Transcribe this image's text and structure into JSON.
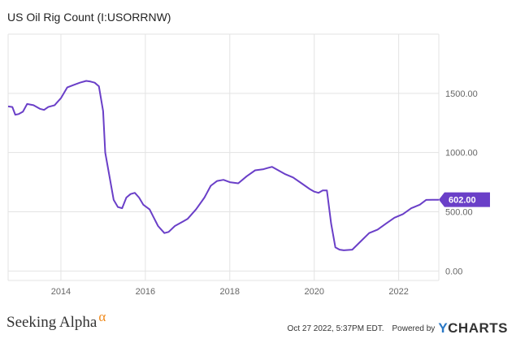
{
  "title": "US Oil Rig Count (I:USORRNW)",
  "footer": {
    "brand": "Seeking Alpha",
    "brand_mark": "α",
    "timestamp": "Oct 27 2022, 5:37PM EDT.",
    "powered_by": "Powered by",
    "logo_y": "Y",
    "logo_rest": "CHARTS"
  },
  "colors": {
    "line": "#6a3fc8",
    "grid": "#e3e3e3",
    "badge": "#6a3fc8"
  },
  "chart_data": {
    "type": "line",
    "title": "US Oil Rig Count (I:USORRNW)",
    "xlim": [
      2012.75,
      2022.95
    ],
    "ylim": [
      -80,
      2000
    ],
    "grid": true,
    "x_ticks": [
      {
        "value": 2014,
        "label": "2014"
      },
      {
        "value": 2016,
        "label": "2016"
      },
      {
        "value": 2018,
        "label": "2018"
      },
      {
        "value": 2020,
        "label": "2020"
      },
      {
        "value": 2022,
        "label": "2022"
      }
    ],
    "y_ticks": [
      {
        "value": 0,
        "label": "0.00"
      },
      {
        "value": 500,
        "label": "500.00"
      },
      {
        "value": 1000,
        "label": "1000.00"
      },
      {
        "value": 1500,
        "label": "1500.00"
      }
    ],
    "last_value": {
      "value": 602,
      "label": "602.00"
    },
    "series": [
      {
        "x": [
          2012.75,
          2012.85,
          2012.92,
          2013.0,
          2013.1,
          2013.2,
          2013.35,
          2013.5,
          2013.6,
          2013.7,
          2013.85,
          2014.0,
          2014.15,
          2014.3,
          2014.45,
          2014.6,
          2014.7,
          2014.8,
          2014.9,
          2015.0,
          2015.05,
          2015.15,
          2015.25,
          2015.35,
          2015.45,
          2015.55,
          2015.65,
          2015.75,
          2015.85,
          2015.95,
          2016.1,
          2016.2,
          2016.3,
          2016.4,
          2016.45,
          2016.55,
          2016.7,
          2016.9,
          2017.0,
          2017.2,
          2017.4,
          2017.55,
          2017.7,
          2017.85,
          2018.0,
          2018.2,
          2018.4,
          2018.6,
          2018.8,
          2018.9,
          2019.0,
          2019.1,
          2019.3,
          2019.5,
          2019.7,
          2019.9,
          2020.0,
          2020.1,
          2020.2,
          2020.3,
          2020.4,
          2020.5,
          2020.6,
          2020.7,
          2020.9,
          2021.1,
          2021.3,
          2021.5,
          2021.7,
          2021.9,
          2022.1,
          2022.3,
          2022.5,
          2022.65,
          2022.8,
          2022.95
        ],
        "y": [
          1390,
          1385,
          1320,
          1325,
          1345,
          1410,
          1400,
          1370,
          1360,
          1385,
          1400,
          1460,
          1550,
          1570,
          1590,
          1605,
          1600,
          1590,
          1560,
          1350,
          1000,
          800,
          600,
          540,
          530,
          620,
          650,
          660,
          620,
          560,
          520,
          450,
          380,
          340,
          320,
          330,
          380,
          420,
          440,
          520,
          620,
          720,
          760,
          770,
          750,
          740,
          800,
          850,
          860,
          870,
          880,
          860,
          820,
          790,
          740,
          690,
          670,
          660,
          680,
          680,
          400,
          200,
          180,
          175,
          180,
          250,
          320,
          350,
          400,
          450,
          480,
          530,
          560,
          600,
          602,
          602
        ]
      }
    ]
  }
}
